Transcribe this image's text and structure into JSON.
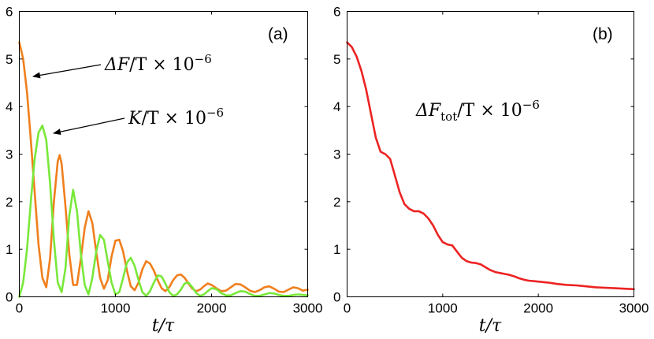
{
  "chart_data": [
    {
      "type": "line",
      "panel_label": "(a)",
      "xlabel": "t/τ",
      "ylabel": "",
      "xlim": [
        0,
        3000
      ],
      "ylim": [
        0,
        6
      ],
      "xticks": [
        "0",
        "1000",
        "2000",
        "3000"
      ],
      "yticks": [
        "0",
        "1",
        "2",
        "3",
        "4",
        "5",
        "6"
      ],
      "grid": false,
      "series": [
        {
          "name": "ΔF/T × 10^-6",
          "color": "#f07f1d",
          "x": [
            0,
            40,
            80,
            120,
            160,
            200,
            240,
            280,
            320,
            360,
            400,
            420,
            440,
            480,
            520,
            560,
            600,
            640,
            680,
            720,
            760,
            800,
            840,
            880,
            920,
            960,
            1000,
            1040,
            1080,
            1120,
            1160,
            1200,
            1240,
            1280,
            1320,
            1360,
            1400,
            1440,
            1480,
            1520,
            1560,
            1600,
            1640,
            1680,
            1720,
            1760,
            1800,
            1840,
            1880,
            1920,
            1960,
            2000,
            2050,
            2100,
            2150,
            2200,
            2250,
            2300,
            2350,
            2400,
            2450,
            2500,
            2550,
            2600,
            2650,
            2700,
            2750,
            2800,
            2850,
            2900,
            2950,
            3000
          ],
          "values": [
            5.35,
            5.0,
            4.3,
            3.3,
            2.2,
            1.1,
            0.4,
            0.2,
            0.8,
            2.0,
            2.85,
            2.98,
            2.8,
            1.9,
            0.9,
            0.25,
            0.25,
            0.8,
            1.45,
            1.8,
            1.55,
            0.95,
            0.4,
            0.17,
            0.35,
            0.85,
            1.18,
            1.2,
            0.95,
            0.55,
            0.22,
            0.14,
            0.3,
            0.58,
            0.75,
            0.7,
            0.55,
            0.35,
            0.18,
            0.12,
            0.2,
            0.35,
            0.45,
            0.47,
            0.4,
            0.28,
            0.17,
            0.12,
            0.15,
            0.22,
            0.28,
            0.25,
            0.18,
            0.12,
            0.13,
            0.2,
            0.27,
            0.26,
            0.2,
            0.13,
            0.1,
            0.14,
            0.2,
            0.22,
            0.17,
            0.11,
            0.1,
            0.15,
            0.2,
            0.18,
            0.13,
            0.15
          ]
        },
        {
          "name": "K/T × 10^-6",
          "color": "#79e83a",
          "x": [
            0,
            40,
            80,
            120,
            160,
            200,
            240,
            280,
            320,
            360,
            400,
            440,
            480,
            520,
            560,
            600,
            640,
            680,
            720,
            760,
            800,
            840,
            880,
            920,
            960,
            1000,
            1040,
            1080,
            1120,
            1160,
            1200,
            1240,
            1280,
            1320,
            1360,
            1400,
            1440,
            1480,
            1520,
            1560,
            1600,
            1640,
            1680,
            1720,
            1760,
            1800,
            1840,
            1880,
            1920,
            1960,
            2000,
            2050,
            2100,
            2150,
            2200,
            2250,
            2300,
            2350,
            2400,
            2450,
            2500,
            2550,
            2600,
            2650,
            2700,
            2750,
            2800,
            2850,
            2900,
            2950,
            3000
          ],
          "values": [
            0,
            0.3,
            1.0,
            2.0,
            2.9,
            3.45,
            3.6,
            3.3,
            2.4,
            1.2,
            0.3,
            0.1,
            0.6,
            1.7,
            2.25,
            1.8,
            0.9,
            0.25,
            0.05,
            0.4,
            0.95,
            1.3,
            1.2,
            0.75,
            0.3,
            0.05,
            0.1,
            0.4,
            0.72,
            0.82,
            0.65,
            0.35,
            0.1,
            0.02,
            0.12,
            0.3,
            0.45,
            0.43,
            0.28,
            0.1,
            0.02,
            0.05,
            0.15,
            0.28,
            0.3,
            0.2,
            0.08,
            0.02,
            0.05,
            0.12,
            0.18,
            0.16,
            0.08,
            0.03,
            0.03,
            0.08,
            0.12,
            0.11,
            0.06,
            0.02,
            0.02,
            0.05,
            0.08,
            0.07,
            0.04,
            0.02,
            0.02,
            0.04,
            0.05,
            0.04,
            0.03
          ]
        }
      ],
      "annotations": [
        {
          "text_main": "ΔF",
          "text_rest": "/T × 10",
          "exponent": "−6",
          "points_to_x": 120,
          "points_to_y": 4.6
        },
        {
          "text_main": "K",
          "text_rest": "/T × 10",
          "exponent": "−6",
          "points_to_x": 320,
          "points_to_y": 3.45
        }
      ]
    },
    {
      "type": "line",
      "panel_label": "(b)",
      "xlabel": "t/τ",
      "ylabel": "",
      "xlim": [
        0,
        3000
      ],
      "ylim": [
        0,
        6
      ],
      "xticks": [
        "0",
        "1000",
        "2000",
        "3000"
      ],
      "yticks": [
        "0",
        "1",
        "2",
        "3",
        "4",
        "5",
        "6"
      ],
      "grid": false,
      "series": [
        {
          "name": "ΔF_tot/T × 10^-6",
          "color": "#ec2323",
          "x": [
            0,
            50,
            100,
            150,
            200,
            250,
            300,
            350,
            400,
            450,
            500,
            550,
            600,
            650,
            700,
            750,
            800,
            850,
            900,
            950,
            1000,
            1050,
            1100,
            1150,
            1200,
            1250,
            1300,
            1350,
            1400,
            1450,
            1500,
            1550,
            1600,
            1650,
            1700,
            1750,
            1800,
            1850,
            1900,
            1950,
            2000,
            2100,
            2200,
            2300,
            2400,
            2500,
            2600,
            2700,
            2800,
            2900,
            3000
          ],
          "values": [
            5.35,
            5.25,
            5.05,
            4.75,
            4.35,
            3.85,
            3.35,
            3.05,
            3.0,
            2.9,
            2.55,
            2.2,
            1.95,
            1.85,
            1.8,
            1.8,
            1.75,
            1.65,
            1.5,
            1.3,
            1.15,
            1.1,
            1.08,
            0.95,
            0.82,
            0.75,
            0.72,
            0.71,
            0.68,
            0.62,
            0.56,
            0.52,
            0.5,
            0.48,
            0.46,
            0.43,
            0.39,
            0.36,
            0.34,
            0.33,
            0.32,
            0.3,
            0.27,
            0.25,
            0.24,
            0.22,
            0.2,
            0.19,
            0.18,
            0.17,
            0.16
          ]
        }
      ],
      "annotations": [
        {
          "text_main": "ΔF",
          "subscript": "tot",
          "text_rest": "/T × 10",
          "exponent": "−6"
        }
      ]
    }
  ]
}
